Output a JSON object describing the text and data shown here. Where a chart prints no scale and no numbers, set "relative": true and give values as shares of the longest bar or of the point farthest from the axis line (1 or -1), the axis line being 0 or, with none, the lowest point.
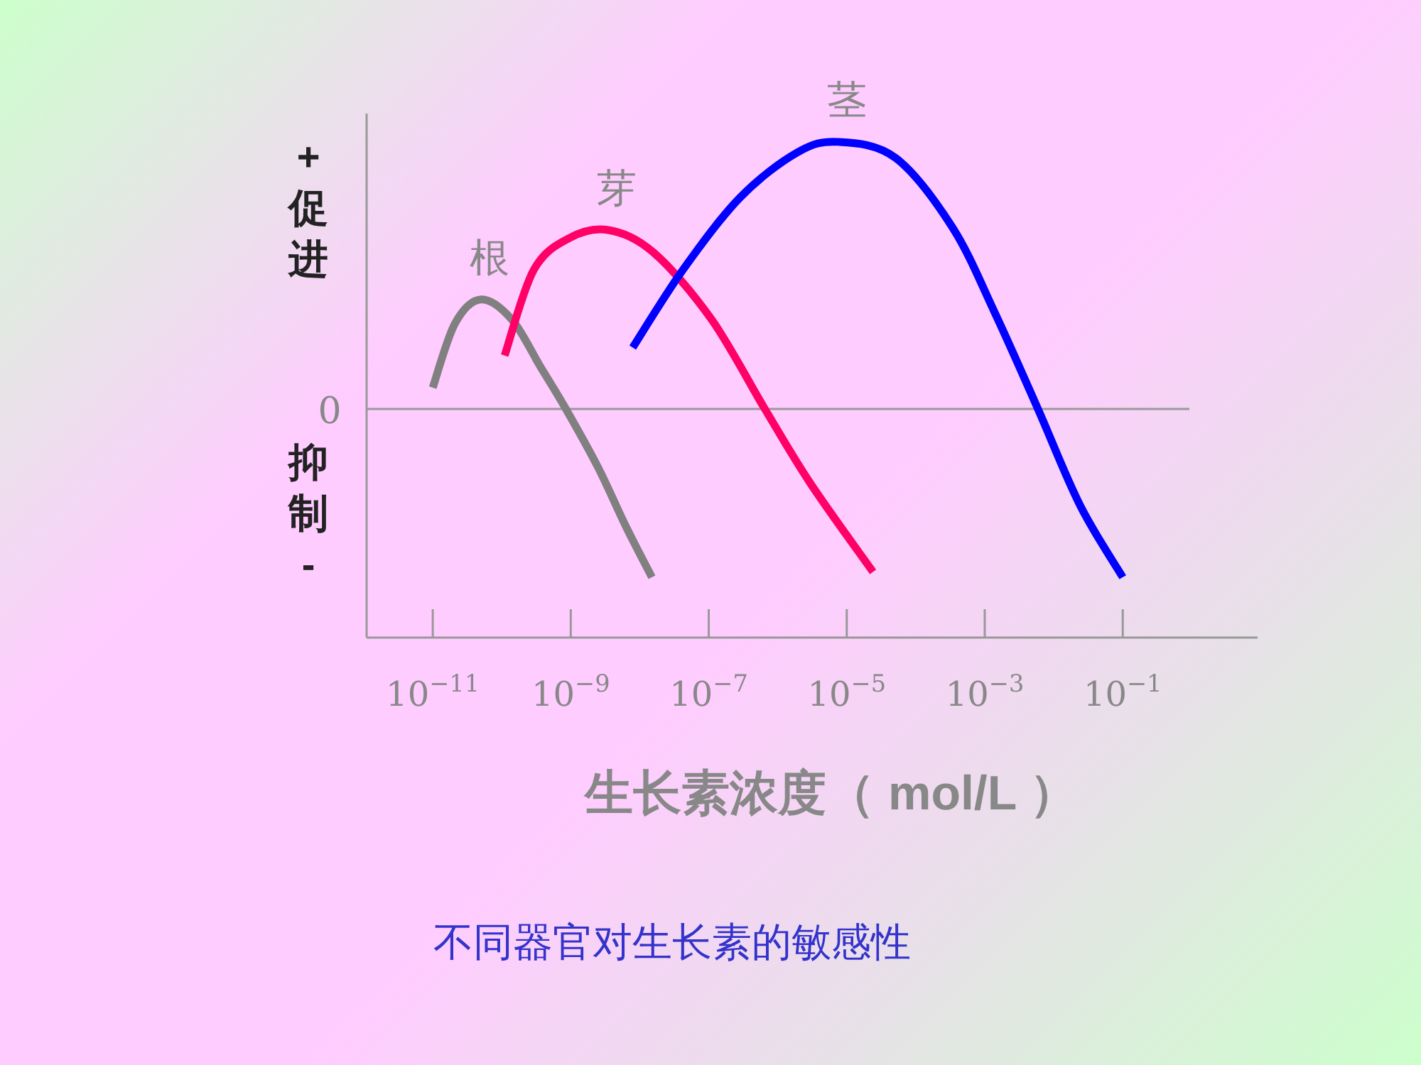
{
  "chart_data": {
    "type": "line",
    "relative": true,
    "log": "x",
    "grid": false,
    "legend": false,
    "marker": "none",
    "line_style": "solid",
    "xlabel": "生长素浓度（ mol/L ）",
    "xlim": [
      1.1e-12,
      9
    ],
    "xticks": [
      {
        "value": 1e-11,
        "label": "10$^{−11}$"
      },
      {
        "value": 1e-09,
        "label": "10$^{−9}$"
      },
      {
        "value": 1e-07,
        "label": "10$^{−7}$"
      },
      {
        "value": 1e-05,
        "label": "10$^{−5}$"
      },
      {
        "value": 0.001,
        "label": "10$^{−3}$"
      },
      {
        "value": 0.1,
        "label": "10$^{−1}$"
      }
    ],
    "series": [
      {
        "name": "根",
        "color": "#808080",
        "x": [
          1e-11,
          2.1e-11,
          5e-11,
          1.4e-10,
          3.6e-10,
          8.5e-10,
          2.5e-09,
          6.3e-09,
          1.5e-08
        ],
        "values": [
          0.08,
          0.32,
          0.41,
          0.335,
          0.16,
          0,
          -0.22,
          -0.44,
          -0.63
        ]
      },
      {
        "name": "芽",
        "color": "#ff0066",
        "x": [
          1.1e-10,
          2.9e-10,
          9.5e-10,
          3.5e-09,
          1.6e-08,
          1.1e-07,
          6.5e-07,
          3e-06,
          2.4e-05
        ],
        "values": [
          0.2,
          0.52,
          0.64,
          0.67,
          0.585,
          0.335,
          0,
          -0.28,
          -0.61
        ]
      },
      {
        "name": "茎",
        "color": "#0000ff",
        "x": [
          7.9e-09,
          4.2e-08,
          2.8e-07,
          1.9e-06,
          7.6e-06,
          5.1e-05,
          0.00034,
          0.0014,
          0.0059,
          0.024,
          0.1
        ],
        "values": [
          0.23,
          0.52,
          0.79,
          0.96,
          1.0,
          0.94,
          0.68,
          0.36,
          0,
          -0.36,
          -0.63
        ]
      }
    ],
    "ref_lines": [
      {
        "axis": "y",
        "value": 0,
        "label": "0",
        "color": "#999999"
      }
    ],
    "annotations": [
      "+ 促进",
      "抑制 -",
      "不同器官对生长素的敏感性"
    ]
  }
}
